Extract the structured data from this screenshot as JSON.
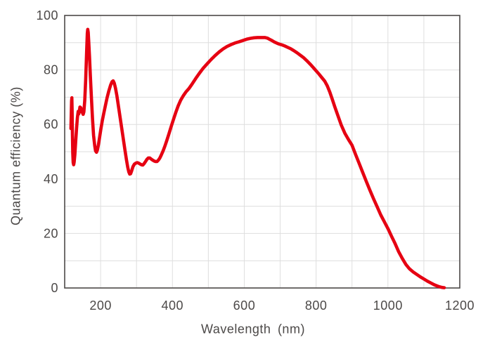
{
  "chart_data": {
    "type": "line",
    "title": "",
    "xlabel": "Wavelength (nm)",
    "ylabel": "Quantum efficiency (%)",
    "xlim": [
      100,
      1200
    ],
    "ylim": [
      0,
      100
    ],
    "x_grid_step": 100,
    "y_grid_step": 10,
    "x_tick_labels": [
      200,
      400,
      600,
      800,
      1000,
      1200
    ],
    "y_tick_labels": [
      0,
      20,
      40,
      60,
      80,
      100
    ],
    "grid": true,
    "legend_position": "none",
    "series": [
      {
        "name": "Quantum efficiency",
        "color": "#e60012",
        "points": [
          [
            117.5,
            58.5
          ],
          [
            118.3,
            63
          ],
          [
            119.2,
            68.5
          ],
          [
            120,
            69.8
          ],
          [
            120.8,
            65
          ],
          [
            121.6,
            57
          ],
          [
            122.5,
            49.5
          ],
          [
            123.6,
            46
          ],
          [
            125,
            45.2
          ],
          [
            126.5,
            46.2
          ],
          [
            128.3,
            49
          ],
          [
            130.5,
            53.5
          ],
          [
            133,
            58.5
          ],
          [
            135.5,
            62.5
          ],
          [
            137.5,
            64.8
          ],
          [
            139,
            63.8
          ],
          [
            140.5,
            64.5
          ],
          [
            142.5,
            66.4
          ],
          [
            144.5,
            66.2
          ],
          [
            147,
            65.3
          ],
          [
            149.5,
            64.3
          ],
          [
            151.5,
            63.7
          ],
          [
            153.5,
            64.6
          ],
          [
            156,
            69
          ],
          [
            158.5,
            76.5
          ],
          [
            161,
            86.5
          ],
          [
            163,
            93.5
          ],
          [
            164.2,
            94.9
          ],
          [
            165.5,
            93.8
          ],
          [
            167,
            90.5
          ],
          [
            169,
            85
          ],
          [
            171.5,
            78
          ],
          [
            174.5,
            69.5
          ],
          [
            177.5,
            62
          ],
          [
            180.5,
            56
          ],
          [
            183.5,
            52.3
          ],
          [
            186,
            50.3
          ],
          [
            188.5,
            49.8
          ],
          [
            191,
            50.6
          ],
          [
            194,
            52.5
          ],
          [
            197.5,
            55.5
          ],
          [
            201,
            58.5
          ],
          [
            205,
            61.5
          ],
          [
            209,
            64.2
          ],
          [
            213.5,
            67
          ],
          [
            218,
            69.8
          ],
          [
            223,
            72.3
          ],
          [
            228,
            74.5
          ],
          [
            232,
            75.7
          ],
          [
            235,
            76
          ],
          [
            238,
            75.2
          ],
          [
            241.5,
            73.3
          ],
          [
            245.5,
            70.5
          ],
          [
            250,
            66.5
          ],
          [
            254.5,
            62.5
          ],
          [
            259,
            58.5
          ],
          [
            263.5,
            54.5
          ],
          [
            268,
            50.5
          ],
          [
            272,
            47
          ],
          [
            275.5,
            44.3
          ],
          [
            278.5,
            42.6
          ],
          [
            281,
            41.8
          ],
          [
            283.5,
            41.9
          ],
          [
            286.5,
            43
          ],
          [
            290,
            44.5
          ],
          [
            294,
            45.4
          ],
          [
            298,
            45.8
          ],
          [
            302,
            46
          ],
          [
            306,
            45.8
          ],
          [
            310,
            45.5
          ],
          [
            314,
            45.2
          ],
          [
            317.5,
            45.1
          ],
          [
            321,
            45.6
          ],
          [
            325,
            46.4
          ],
          [
            329,
            47.2
          ],
          [
            333,
            47.7
          ],
          [
            337,
            47.7
          ],
          [
            341,
            47.3
          ],
          [
            345,
            46.9
          ],
          [
            349,
            46.6
          ],
          [
            353,
            46.4
          ],
          [
            357,
            46.4
          ],
          [
            361,
            46.9
          ],
          [
            365,
            47.7
          ],
          [
            369,
            48.8
          ],
          [
            374,
            50.3
          ],
          [
            379,
            52
          ],
          [
            384,
            54
          ],
          [
            390,
            56.5
          ],
          [
            396,
            59
          ],
          [
            402,
            61.5
          ],
          [
            409,
            64.3
          ],
          [
            416,
            66.8
          ],
          [
            423,
            68.9
          ],
          [
            430,
            70.5
          ],
          [
            438,
            72
          ],
          [
            446,
            73.2
          ],
          [
            455,
            74.9
          ],
          [
            465,
            76.9
          ],
          [
            475,
            78.8
          ],
          [
            486,
            80.7
          ],
          [
            497,
            82.3
          ],
          [
            508,
            83.9
          ],
          [
            519,
            85.3
          ],
          [
            530,
            86.6
          ],
          [
            541,
            87.7
          ],
          [
            552,
            88.6
          ],
          [
            563,
            89.3
          ],
          [
            574,
            89.9
          ],
          [
            585,
            90.3
          ],
          [
            596,
            90.8
          ],
          [
            607,
            91.3
          ],
          [
            617,
            91.6
          ],
          [
            627,
            91.8
          ],
          [
            637,
            91.9
          ],
          [
            647,
            91.9
          ],
          [
            657,
            91.9
          ],
          [
            664,
            91.7
          ],
          [
            671,
            91.2
          ],
          [
            677,
            90.8
          ],
          [
            683,
            90.3
          ],
          [
            690,
            89.9
          ],
          [
            697,
            89.5
          ],
          [
            705,
            89.2
          ],
          [
            713,
            88.8
          ],
          [
            721,
            88.3
          ],
          [
            729,
            87.8
          ],
          [
            738,
            87.1
          ],
          [
            747,
            86.3
          ],
          [
            756,
            85.4
          ],
          [
            765,
            84.5
          ],
          [
            774,
            83.4
          ],
          [
            783,
            82.2
          ],
          [
            792,
            80.9
          ],
          [
            800,
            79.7
          ],
          [
            808,
            78.5
          ],
          [
            816,
            77.2
          ],
          [
            824,
            75.9
          ],
          [
            831,
            74.2
          ],
          [
            838,
            71.9
          ],
          [
            845,
            69.3
          ],
          [
            852,
            66.5
          ],
          [
            860,
            63.5
          ],
          [
            870,
            59.8
          ],
          [
            880,
            56.8
          ],
          [
            890,
            54.5
          ],
          [
            900,
            52.4
          ],
          [
            910,
            49
          ],
          [
            920,
            45.7
          ],
          [
            930,
            42.3
          ],
          [
            940,
            39
          ],
          [
            950,
            35.8
          ],
          [
            960,
            32.7
          ],
          [
            970,
            29.8
          ],
          [
            980,
            26.8
          ],
          [
            990,
            24.3
          ],
          [
            1000,
            21.8
          ],
          [
            1010,
            19
          ],
          [
            1020,
            16.3
          ],
          [
            1030,
            13.3
          ],
          [
            1040,
            10.8
          ],
          [
            1050,
            8.6
          ],
          [
            1060,
            7
          ],
          [
            1070,
            5.9
          ],
          [
            1080,
            5
          ],
          [
            1090,
            4.1
          ],
          [
            1100,
            3.3
          ],
          [
            1110,
            2.5
          ],
          [
            1120,
            1.8
          ],
          [
            1130,
            1.1
          ],
          [
            1140,
            0.6
          ],
          [
            1150,
            0.2
          ],
          [
            1157,
            0.1
          ]
        ]
      }
    ]
  },
  "colors": {
    "curve": "#e60012",
    "grid": "#dedede",
    "border": "#4c4948",
    "text": "#4c4948",
    "background": "#ffffff"
  }
}
